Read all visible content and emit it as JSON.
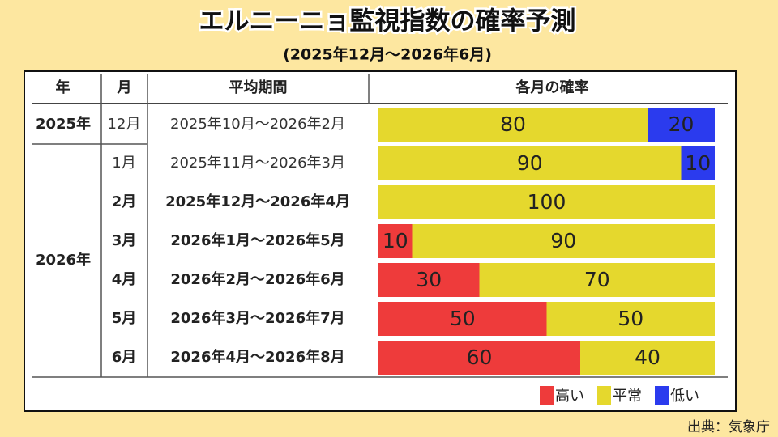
{
  "title": "エルニーニョ監視指数の確率予測",
  "subtitle": "(2025年12月～2026年6月)",
  "table": {
    "headers": [
      "年",
      "月",
      "平均期間",
      "各月の確率"
    ],
    "rows": [
      {
        "year": "2025年",
        "month": "12月",
        "period": "2025年10月～2026年2月",
        "values": [
          null,
          80,
          20
        ],
        "emphasis": false
      },
      {
        "year": "2026年",
        "month": "1月",
        "period": "2025年11月～2026年3月",
        "values": [
          null,
          90,
          10
        ],
        "emphasis": false
      },
      {
        "year": null,
        "month": "2月",
        "period": "2025年12月～2026年4月",
        "values": [
          null,
          100,
          null
        ],
        "emphasis": true
      },
      {
        "year": null,
        "month": "3月",
        "period": "2026年1月～2026年5月",
        "values": [
          10,
          90,
          null
        ],
        "emphasis": true
      },
      {
        "year": null,
        "month": "4月",
        "period": "2026年2月～2026年6月",
        "values": [
          30,
          70,
          null
        ],
        "emphasis": true
      },
      {
        "year": null,
        "month": "5月",
        "period": "2026年3月～2026年7月",
        "values": [
          50,
          50,
          null
        ],
        "emphasis": true
      },
      {
        "year": null,
        "month": "6月",
        "period": "2026年4月～2026年8月",
        "values": [
          60,
          40,
          null
        ],
        "emphasis": true
      }
    ]
  },
  "legend": [
    {
      "label": "高い",
      "color": "#ee3b3b"
    },
    {
      "label": "平常",
      "color": "#e5d82d"
    },
    {
      "label": "低い",
      "color": "#2b3bee"
    }
  ],
  "source": "出典：気象庁"
}
